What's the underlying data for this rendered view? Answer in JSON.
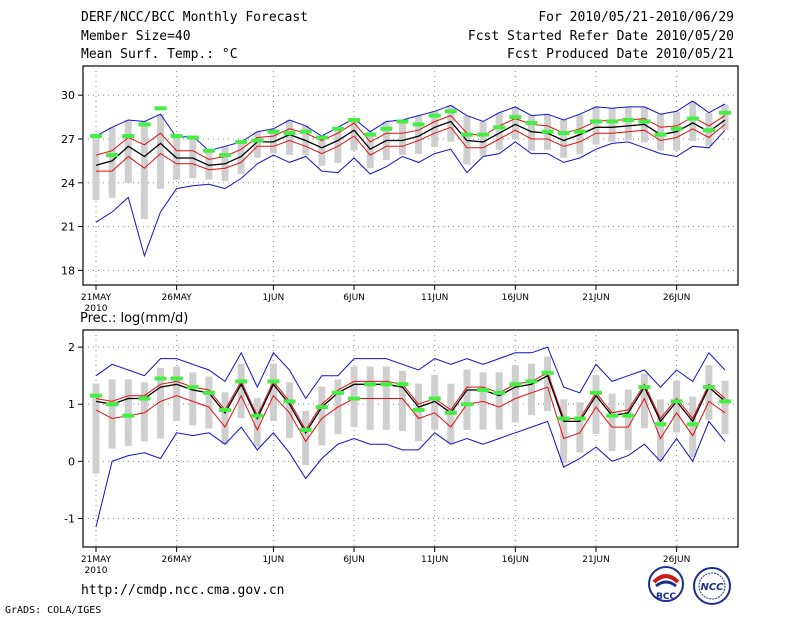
{
  "header": {
    "title": "DERF/NCC/BCC Monthly Forecast",
    "member_size": "Member Size=40",
    "variable_top": "Mean Surf. Temp.: °C",
    "forecast_period": "For 2010/05/21-2010/06/29",
    "start_date": "Fcst Started Refer Date 2010/05/20",
    "produced_date": "Fcst Produced Date 2010/05/21"
  },
  "footer": {
    "url": "http://cmdp.ncc.cma.gov.cn",
    "grads": "GrADS: COLA/IGES",
    "logo_bcc": "BCC",
    "logo_ncc": "NCC"
  },
  "colors": {
    "max_min_line": "#1010d0",
    "mean_line": "#000000",
    "spread_line": "#e01010",
    "deterministic_marker": "#44ee44",
    "box": "#cfcfcf"
  },
  "chart_data": [
    {
      "type": "line",
      "title": "Mean Surf. Temp.: °C",
      "x": [
        "21MAY",
        "22MAY",
        "23MAY",
        "24MAY",
        "25MAY",
        "26MAY",
        "27MAY",
        "28MAY",
        "29MAY",
        "30MAY",
        "31MAY",
        "1JUN",
        "2JUN",
        "3JUN",
        "4JUN",
        "5JUN",
        "6JUN",
        "7JUN",
        "8JUN",
        "9JUN",
        "10JUN",
        "11JUN",
        "12JUN",
        "13JUN",
        "14JUN",
        "15JUN",
        "16JUN",
        "17JUN",
        "18JUN",
        "19JUN",
        "20JUN",
        "21JUN",
        "22JUN",
        "23JUN",
        "24JUN",
        "25JUN",
        "26JUN",
        "27JUN",
        "28JUN",
        "29JUN"
      ],
      "xticks": [
        "21MAY",
        "26MAY",
        "1JUN",
        "6JUN",
        "11JUN",
        "16JUN",
        "21JUN",
        "26JUN"
      ],
      "xtick_year": "2010",
      "ylim": [
        17,
        32
      ],
      "yticks": [
        18,
        21,
        24,
        27,
        30
      ],
      "series": [
        {
          "name": "max",
          "values": [
            27.2,
            27.8,
            28.3,
            28.2,
            28.7,
            27.1,
            27.2,
            26.2,
            26.5,
            26.8,
            27.5,
            27.7,
            28.3,
            27.9,
            27.2,
            27.8,
            28.4,
            27.5,
            28.2,
            28.3,
            28.6,
            28.9,
            29.3,
            28.6,
            28.2,
            28.8,
            29.2,
            28.6,
            28.7,
            28.3,
            28.7,
            29.2,
            29.1,
            29.2,
            29.2,
            28.7,
            28.9,
            29.6,
            28.8,
            29.4
          ]
        },
        {
          "name": "mean_plus_sd",
          "values": [
            25.9,
            26.2,
            27.1,
            26.6,
            27.4,
            26.2,
            26.2,
            25.6,
            25.8,
            26.3,
            27.1,
            27.2,
            27.7,
            27.4,
            26.9,
            27.4,
            28.1,
            26.8,
            27.4,
            27.4,
            27.6,
            28.2,
            28.6,
            27.4,
            27.2,
            27.9,
            28.4,
            28.0,
            27.9,
            27.4,
            27.7,
            28.2,
            28.3,
            28.3,
            28.4,
            27.8,
            27.9,
            28.5,
            27.9,
            28.6
          ]
        },
        {
          "name": "mean",
          "values": [
            25.2,
            25.5,
            26.5,
            25.8,
            26.7,
            25.7,
            25.7,
            25.2,
            25.3,
            25.8,
            26.8,
            26.8,
            27.3,
            26.9,
            26.4,
            26.9,
            27.6,
            26.3,
            26.9,
            26.9,
            27.2,
            27.8,
            28.2,
            26.9,
            26.8,
            27.4,
            28.0,
            27.5,
            27.4,
            26.9,
            27.3,
            27.8,
            27.8,
            27.9,
            28.0,
            27.3,
            27.5,
            28.1,
            27.5,
            28.3
          ]
        },
        {
          "name": "mean_minus_sd",
          "values": [
            24.8,
            24.8,
            25.8,
            25.0,
            26.0,
            25.3,
            25.3,
            24.9,
            25.0,
            25.4,
            26.5,
            26.5,
            26.9,
            26.5,
            26.0,
            26.5,
            27.2,
            25.9,
            26.5,
            26.5,
            26.9,
            27.4,
            27.8,
            26.4,
            26.4,
            27.0,
            27.6,
            27.0,
            27.0,
            26.5,
            26.8,
            27.4,
            27.4,
            27.5,
            27.6,
            26.9,
            27.1,
            27.7,
            27.1,
            28.0
          ]
        },
        {
          "name": "min",
          "values": [
            21.3,
            22.0,
            23.0,
            19.0,
            22.0,
            23.6,
            23.8,
            23.9,
            23.6,
            24.3,
            25.3,
            25.9,
            25.4,
            25.8,
            24.8,
            24.7,
            25.7,
            24.6,
            25.1,
            25.8,
            25.4,
            26.0,
            26.3,
            24.7,
            25.8,
            26.0,
            26.8,
            26.0,
            26.0,
            25.4,
            25.7,
            26.3,
            26.7,
            26.8,
            26.4,
            26.0,
            25.8,
            26.5,
            26.4,
            27.6
          ]
        },
        {
          "name": "deterministic",
          "values": [
            27.2,
            25.9,
            27.2,
            28.0,
            29.1,
            27.2,
            27.1,
            26.2,
            25.9,
            26.8,
            26.9,
            27.5,
            27.4,
            27.5,
            27.1,
            27.7,
            28.3,
            27.3,
            27.7,
            28.2,
            28.0,
            28.6,
            28.9,
            27.3,
            27.3,
            27.8,
            28.5,
            28.1,
            27.5,
            27.4,
            27.5,
            28.2,
            28.2,
            28.3,
            28.2,
            27.3,
            27.7,
            28.4,
            27.6,
            28.8
          ]
        }
      ]
    },
    {
      "type": "line",
      "title": "Prec.: log(mm/d)",
      "x": [
        "21MAY",
        "22MAY",
        "23MAY",
        "24MAY",
        "25MAY",
        "26MAY",
        "27MAY",
        "28MAY",
        "29MAY",
        "30MAY",
        "31MAY",
        "1JUN",
        "2JUN",
        "3JUN",
        "4JUN",
        "5JUN",
        "6JUN",
        "7JUN",
        "8JUN",
        "9JUN",
        "10JUN",
        "11JUN",
        "12JUN",
        "13JUN",
        "14JUN",
        "15JUN",
        "16JUN",
        "17JUN",
        "18JUN",
        "19JUN",
        "20JUN",
        "21JUN",
        "22JUN",
        "23JUN",
        "24JUN",
        "25JUN",
        "26JUN",
        "27JUN",
        "28JUN",
        "29JUN"
      ],
      "xticks": [
        "21MAY",
        "26MAY",
        "1JUN",
        "6JUN",
        "11JUN",
        "16JUN",
        "21JUN",
        "26JUN"
      ],
      "xtick_year": "2010",
      "ylim": [
        -1.5,
        2.3
      ],
      "yticks": [
        -1,
        0,
        1,
        2
      ],
      "series": [
        {
          "name": "max",
          "values": [
            1.5,
            1.7,
            1.6,
            1.5,
            1.8,
            1.8,
            1.7,
            1.6,
            1.4,
            1.9,
            1.3,
            1.9,
            1.6,
            1.1,
            1.5,
            1.5,
            1.8,
            1.8,
            1.8,
            1.7,
            1.6,
            1.8,
            1.7,
            1.8,
            1.7,
            1.8,
            1.9,
            1.9,
            2.0,
            1.3,
            1.2,
            1.7,
            1.4,
            1.5,
            1.6,
            1.3,
            1.6,
            1.4,
            1.9,
            1.6
          ]
        },
        {
          "name": "mean_plus_sd",
          "values": [
            1.1,
            1.05,
            1.15,
            1.15,
            1.35,
            1.4,
            1.3,
            1.25,
            0.9,
            1.4,
            0.8,
            1.4,
            1.05,
            0.55,
            1.0,
            1.25,
            1.4,
            1.4,
            1.4,
            1.35,
            1.0,
            1.1,
            0.9,
            1.3,
            1.3,
            1.2,
            1.35,
            1.4,
            1.55,
            0.75,
            0.75,
            1.2,
            0.85,
            0.9,
            1.35,
            0.75,
            1.1,
            0.75,
            1.35,
            1.1
          ]
        },
        {
          "name": "mean",
          "values": [
            1.05,
            1.0,
            1.1,
            1.1,
            1.3,
            1.35,
            1.25,
            1.2,
            0.85,
            1.35,
            0.75,
            1.35,
            1.0,
            0.5,
            0.95,
            1.2,
            1.35,
            1.35,
            1.35,
            1.3,
            0.95,
            1.05,
            0.85,
            1.25,
            1.25,
            1.15,
            1.3,
            1.35,
            1.5,
            0.7,
            0.7,
            1.15,
            0.8,
            0.85,
            1.3,
            0.7,
            1.05,
            0.7,
            1.3,
            1.05
          ]
        },
        {
          "name": "mean_minus_sd",
          "values": [
            0.9,
            0.75,
            0.8,
            0.85,
            1.05,
            1.15,
            1.05,
            0.95,
            0.6,
            1.15,
            0.55,
            1.15,
            0.85,
            0.35,
            0.75,
            0.95,
            1.1,
            1.1,
            1.1,
            1.1,
            0.75,
            0.85,
            0.6,
            1.0,
            1.05,
            0.95,
            1.1,
            1.2,
            1.3,
            0.4,
            0.5,
            0.95,
            0.6,
            0.6,
            1.1,
            0.4,
            0.85,
            0.45,
            1.05,
            0.85
          ]
        },
        {
          "name": "min",
          "values": [
            -1.15,
            0.0,
            0.1,
            0.15,
            0.05,
            0.5,
            0.45,
            0.5,
            0.3,
            0.6,
            0.2,
            0.5,
            0.15,
            -0.3,
            0.05,
            0.3,
            0.4,
            0.3,
            0.3,
            0.2,
            0.2,
            0.5,
            0.3,
            0.4,
            0.3,
            0.4,
            0.5,
            0.6,
            0.7,
            -0.1,
            0.05,
            0.25,
            0.0,
            0.1,
            0.3,
            0.0,
            0.4,
            0.0,
            0.7,
            0.35
          ]
        },
        {
          "name": "deterministic",
          "values": [
            1.15,
            1.0,
            0.8,
            1.1,
            1.45,
            1.45,
            1.3,
            1.2,
            0.9,
            1.4,
            0.8,
            1.4,
            1.05,
            0.55,
            0.95,
            1.2,
            1.1,
            1.35,
            1.35,
            1.35,
            0.9,
            1.1,
            0.85,
            1.0,
            1.25,
            1.2,
            1.35,
            1.4,
            1.55,
            0.75,
            0.75,
            1.2,
            0.8,
            0.8,
            1.3,
            0.65,
            1.05,
            0.65,
            1.3,
            1.05
          ]
        }
      ]
    }
  ]
}
